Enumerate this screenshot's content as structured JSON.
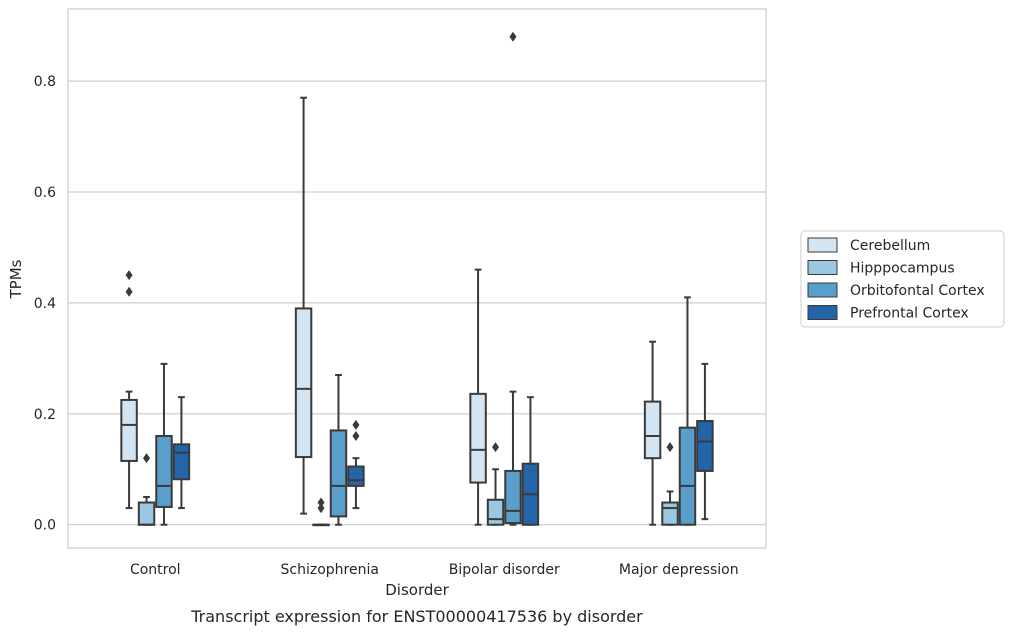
{
  "chart_data": {
    "type": "boxplot",
    "xlabel": "Disorder",
    "ylabel": "TPMs",
    "caption": "Transcript expression for ENST00000417536 by disorder",
    "ylim": [
      -0.042,
      0.93
    ],
    "yticks": [
      0.0,
      0.2,
      0.4,
      0.6,
      0.8
    ],
    "ytick_labels": [
      "0.0",
      "0.2",
      "0.4",
      "0.6",
      "0.8"
    ],
    "grid": "horizontal",
    "legend_position": "right-center",
    "categories": [
      "Control",
      "Schizophrenia",
      "Bipolar disorder",
      "Major depression"
    ],
    "series": [
      {
        "name": "Cerebellum",
        "color": "#d3e4f3",
        "boxes": [
          {
            "whislo": 0.03,
            "q1": 0.115,
            "med": 0.18,
            "q3": 0.225,
            "whishi": 0.24,
            "fliers": [
              0.42,
              0.45
            ]
          },
          {
            "whislo": 0.02,
            "q1": 0.122,
            "med": 0.245,
            "q3": 0.39,
            "whishi": 0.77,
            "fliers": []
          },
          {
            "whislo": 0.0,
            "q1": 0.076,
            "med": 0.135,
            "q3": 0.236,
            "whishi": 0.46,
            "fliers": []
          },
          {
            "whislo": 0.0,
            "q1": 0.12,
            "med": 0.16,
            "q3": 0.222,
            "whishi": 0.33,
            "fliers": []
          }
        ]
      },
      {
        "name": "Hipppocampus",
        "color": "#9ac8e0",
        "boxes": [
          {
            "whislo": 0.0,
            "q1": 0.0,
            "med": 0.0,
            "q3": 0.04,
            "whishi": 0.05,
            "fliers": [
              0.12
            ]
          },
          {
            "whislo": 0.0,
            "q1": 0.0,
            "med": 0.0,
            "q3": 0.0,
            "whishi": 0.0,
            "fliers": [
              0.03,
              0.04
            ]
          },
          {
            "whislo": 0.0,
            "q1": 0.0,
            "med": 0.01,
            "q3": 0.045,
            "whishi": 0.1,
            "fliers": [
              0.14
            ]
          },
          {
            "whislo": 0.0,
            "q1": 0.0,
            "med": 0.03,
            "q3": 0.04,
            "whishi": 0.06,
            "fliers": [
              0.14
            ]
          }
        ]
      },
      {
        "name": "Orbitofontal Cortex",
        "color": "#5a9ecb",
        "boxes": [
          {
            "whislo": 0.0,
            "q1": 0.032,
            "med": 0.07,
            "q3": 0.16,
            "whishi": 0.29,
            "fliers": []
          },
          {
            "whislo": 0.0,
            "q1": 0.015,
            "med": 0.07,
            "q3": 0.17,
            "whishi": 0.27,
            "fliers": []
          },
          {
            "whislo": 0.0,
            "q1": 0.003,
            "med": 0.025,
            "q3": 0.097,
            "whishi": 0.24,
            "fliers": [
              0.88
            ]
          },
          {
            "whislo": 0.0,
            "q1": 0.0,
            "med": 0.07,
            "q3": 0.175,
            "whishi": 0.41,
            "fliers": []
          }
        ]
      },
      {
        "name": "Prefrontal Cortex",
        "color": "#2464a8",
        "boxes": [
          {
            "whislo": 0.03,
            "q1": 0.082,
            "med": 0.13,
            "q3": 0.145,
            "whishi": 0.23,
            "fliers": []
          },
          {
            "whislo": 0.03,
            "q1": 0.07,
            "med": 0.08,
            "q3": 0.105,
            "whishi": 0.12,
            "fliers": [
              0.16,
              0.18
            ]
          },
          {
            "whislo": 0.0,
            "q1": 0.0,
            "med": 0.055,
            "q3": 0.11,
            "whishi": 0.23,
            "fliers": []
          },
          {
            "whislo": 0.01,
            "q1": 0.097,
            "med": 0.15,
            "q3": 0.187,
            "whishi": 0.29,
            "fliers": []
          }
        ]
      }
    ]
  }
}
